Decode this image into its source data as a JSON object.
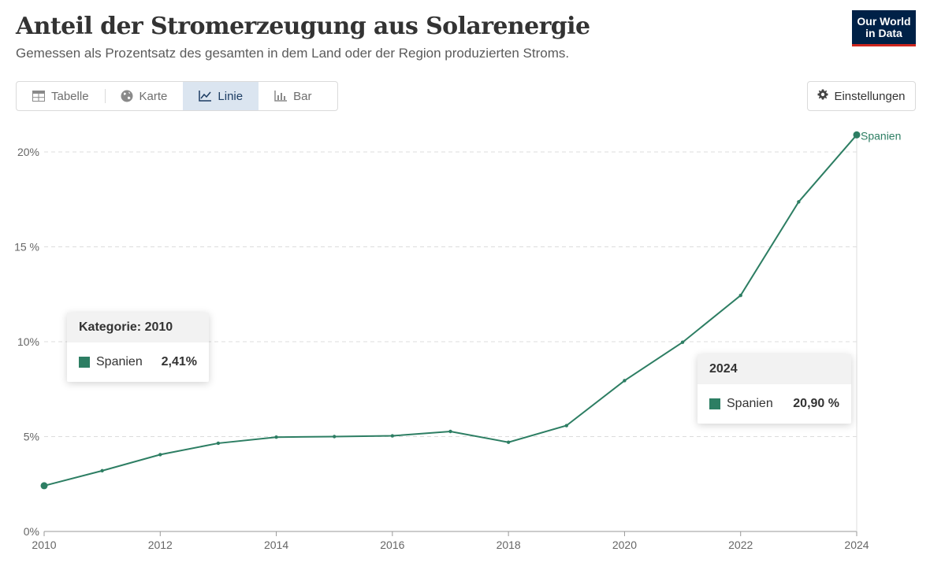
{
  "header": {
    "title": "Anteil der Stromerzeugung aus Solarenergie",
    "subtitle": "Gemessen als Prozentsatz des gesamten in dem Land oder der Region produzierten Stroms.",
    "logo_line1": "Our World",
    "logo_line2": "in Data"
  },
  "tabs": [
    {
      "label": "Tabelle",
      "icon": "table-icon",
      "active": false
    },
    {
      "label": "Karte",
      "icon": "globe-icon",
      "active": false
    },
    {
      "label": "Linie",
      "icon": "line-chart-icon",
      "active": true
    },
    {
      "label": "Bar",
      "icon": "bar-chart-icon",
      "active": false
    }
  ],
  "settings": {
    "label": "Einstellungen",
    "icon": "gear-icon"
  },
  "tooltips": [
    {
      "header": "Kategorie: 2010",
      "series": "Spanien",
      "value": "2,41%"
    },
    {
      "header": "2024",
      "series": "Spanien",
      "value": "20,90 %"
    }
  ],
  "colors": {
    "series": "#2d7e63",
    "logo_bg": "#002147",
    "logo_bar": "#ce261e",
    "active_tab": "#dbe5f0"
  },
  "chart_data": {
    "type": "line",
    "title": "Anteil der Stromerzeugung aus Solarenergie",
    "xlim": [
      2010,
      2024
    ],
    "ylim": [
      0,
      20
    ],
    "grid": true,
    "x_ticks": [
      "2010",
      "2012",
      "2014",
      "2016",
      "2018",
      "2020",
      "2022",
      "2024"
    ],
    "y_ticks": [
      "0%",
      "5%",
      "10%",
      "15 %",
      "20%"
    ],
    "series": [
      {
        "name": "Spanien",
        "color": "#2d7e63",
        "x": [
          2010,
          2011,
          2012,
          2013,
          2014,
          2015,
          2016,
          2017,
          2018,
          2019,
          2020,
          2021,
          2022,
          2023,
          2024
        ],
        "values": [
          2.41,
          3.2,
          4.05,
          4.65,
          4.97,
          5.0,
          5.04,
          5.27,
          4.7,
          5.58,
          7.95,
          9.97,
          12.44,
          17.37,
          20.9
        ]
      }
    ]
  }
}
